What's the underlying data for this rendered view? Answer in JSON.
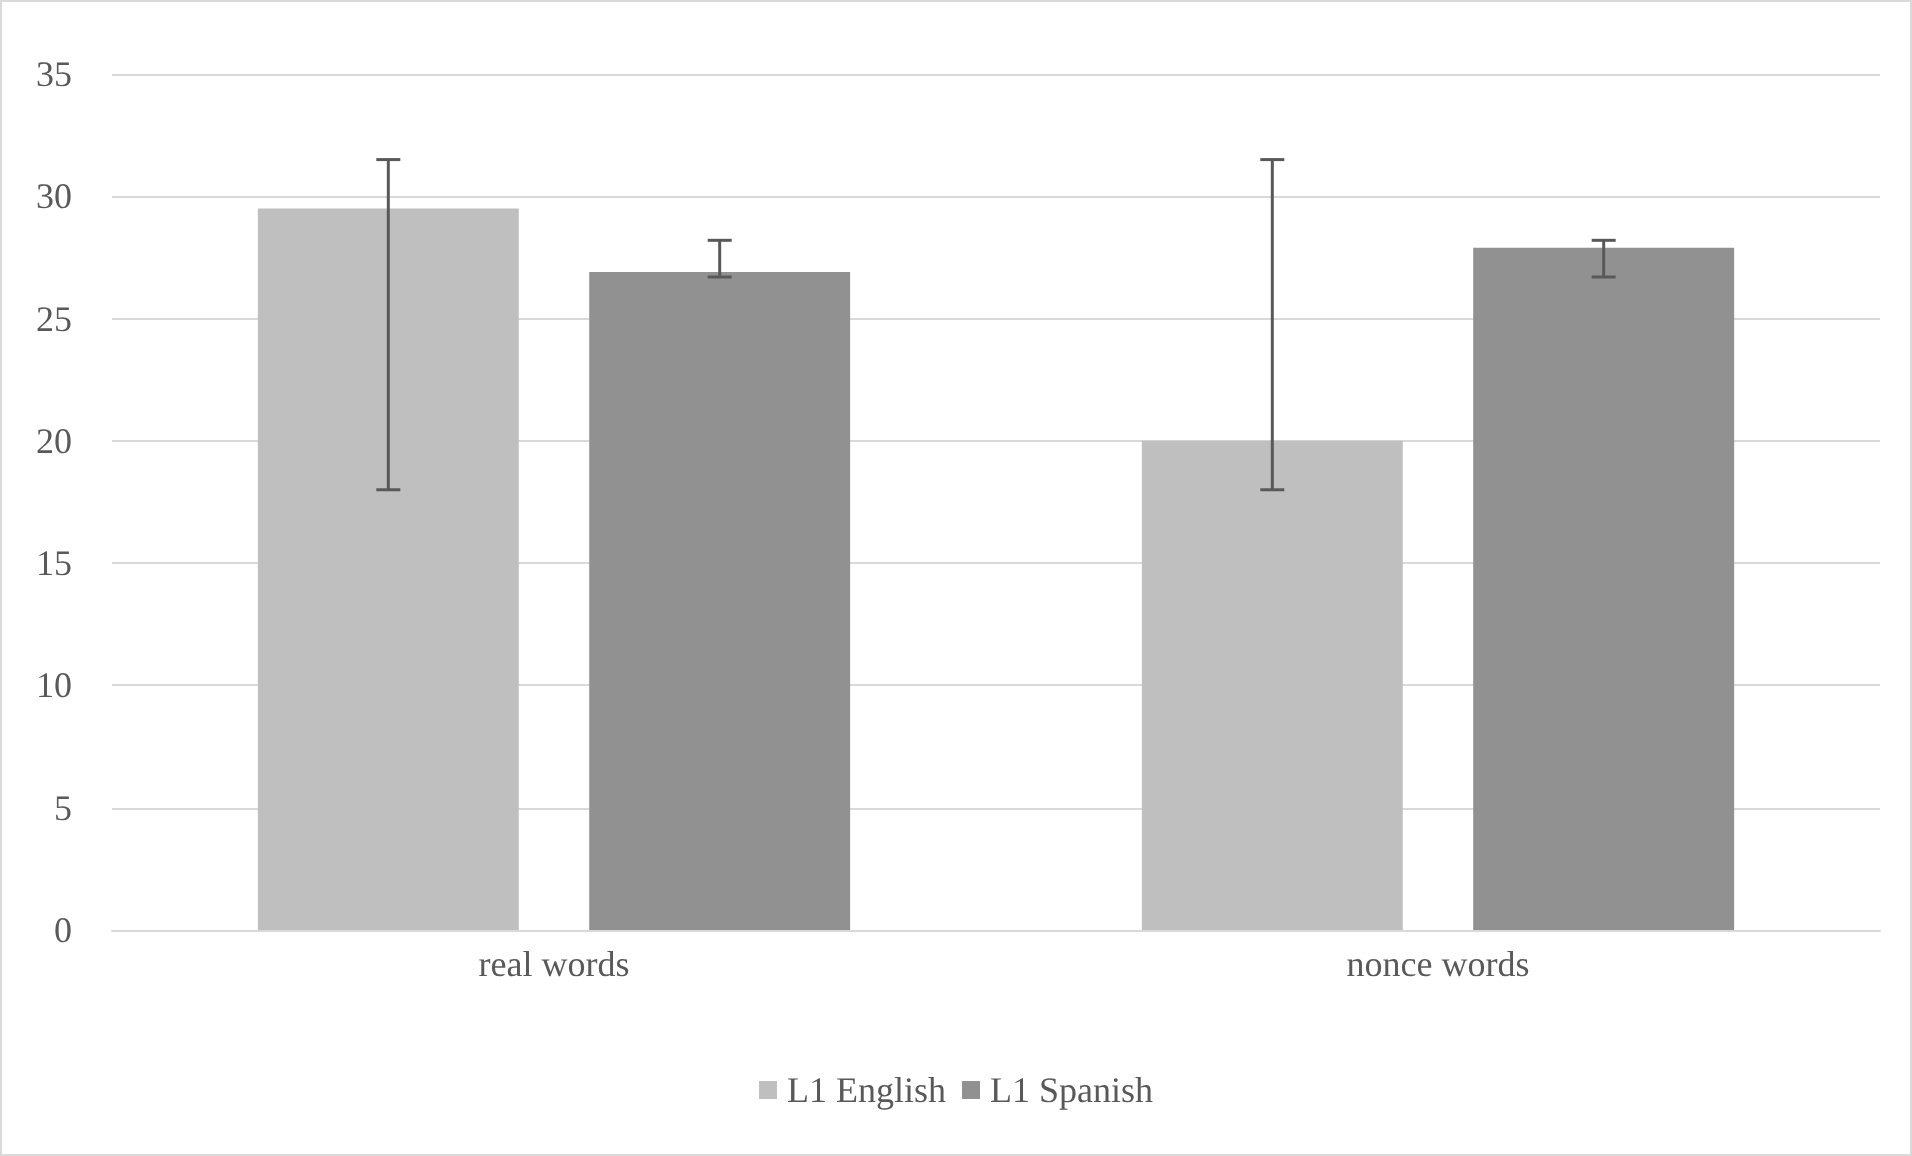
{
  "chart_data": {
    "type": "bar",
    "categories": [
      "real words",
      "nonce words"
    ],
    "series": [
      {
        "name": "L1 English",
        "color": "#bfbfbf",
        "values": [
          29.5,
          20.0
        ],
        "errors": [
          [
            18.0,
            31.5
          ],
          [
            18.0,
            31.5
          ]
        ]
      },
      {
        "name": "L1 Spanish",
        "color": "#919191",
        "values": [
          26.9,
          27.9
        ],
        "errors": [
          [
            26.7,
            28.2
          ],
          [
            26.7,
            28.2
          ]
        ]
      }
    ],
    "ylim": [
      0,
      35
    ],
    "yticks": [
      0,
      5,
      10,
      15,
      20,
      25,
      30,
      35
    ],
    "grid": "y",
    "legend": "bottom"
  }
}
